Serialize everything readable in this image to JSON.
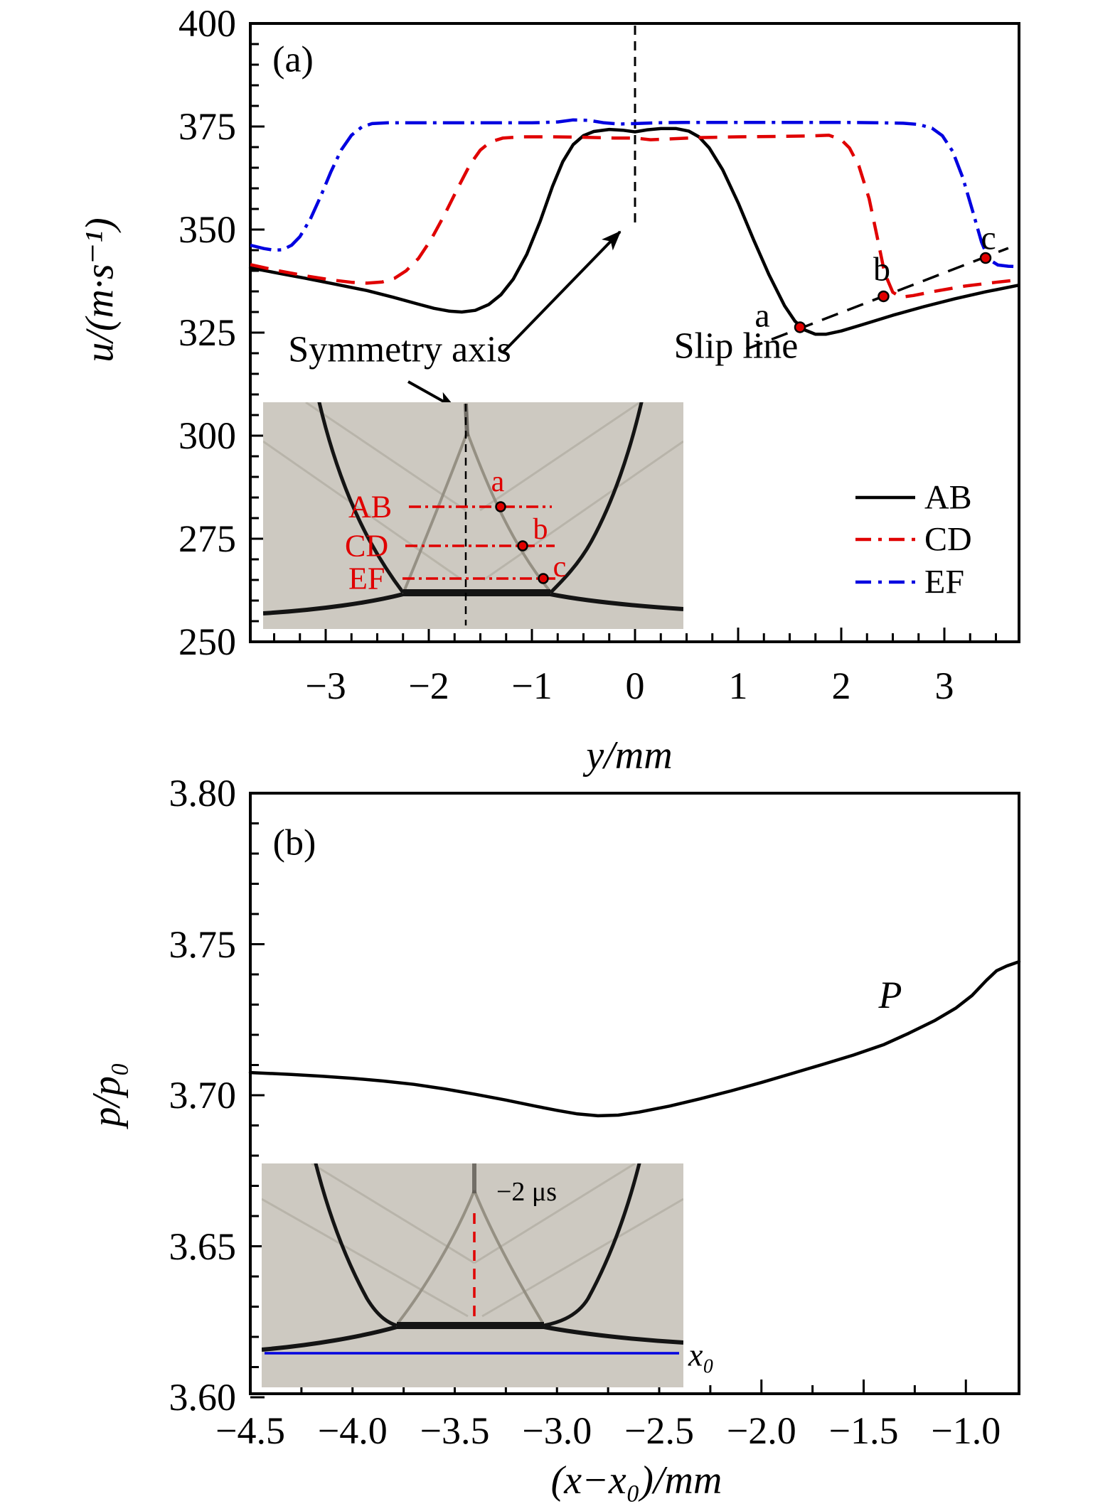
{
  "panel_a": {
    "label": "(a)",
    "ylabel": "u/(m·s⁻¹)",
    "xlabel": "y/mm",
    "yticks": [
      "400",
      "375",
      "350",
      "325",
      "300",
      "275",
      "250"
    ],
    "xticks": [
      "−3",
      "−2",
      "−1",
      "0",
      "1",
      "2",
      "3"
    ],
    "legend": [
      "AB",
      "CD",
      "EF"
    ],
    "annotations": {
      "symmetry": "Symmetry axis",
      "slip": "Slip line",
      "point_a": "a",
      "point_b": "b",
      "point_c": "c"
    },
    "inset": {
      "line_ab": "AB",
      "line_cd": "CD",
      "line_ef": "EF",
      "point_a": "a",
      "point_b": "b",
      "point_c": "c"
    }
  },
  "panel_b": {
    "label": "(b)",
    "ylabel": "p/p₀",
    "xlabel": "(x−x₀)/mm",
    "yticks": [
      "3.80",
      "3.75",
      "3.70",
      "3.65",
      "3.60"
    ],
    "xticks": [
      "−4.5",
      "−4.0",
      "−3.5",
      "−3.0",
      "−2.5",
      "−2.0",
      "−1.5",
      "−1.0"
    ],
    "curve_label": "P",
    "inset": {
      "time_label": "−2 μs",
      "x0_label": "x₀"
    }
  },
  "colors": {
    "black": "#000000",
    "red": "#e00000",
    "blue": "#0000e0",
    "inset_bg": "#cdc9c1"
  },
  "chart_data": [
    {
      "type": "line",
      "title": "",
      "xlabel": "y/mm",
      "ylabel": "u/(m·s⁻¹)",
      "xlim": [
        -3.73,
        3.72
      ],
      "ylim": [
        250,
        400
      ],
      "xticks": [
        -3,
        -2,
        -1,
        0,
        1,
        2,
        3
      ],
      "yticks": [
        400,
        375,
        350,
        325,
        300,
        275,
        250
      ],
      "x_minor_step": 0.25,
      "y_minor_step": 5,
      "grid": false,
      "legend_position": "lower right",
      "symmetry_axis_x": 0,
      "slip_line": [
        [
          1.08,
          321.0
        ],
        [
          3.62,
          345.5
        ]
      ],
      "marked_points": [
        {
          "label": "a",
          "x": 1.6,
          "y": 326.3
        },
        {
          "label": "b",
          "x": 2.41,
          "y": 333.8
        },
        {
          "label": "c",
          "x": 3.4,
          "y": 343.1
        }
      ],
      "series": [
        {
          "name": "AB",
          "color": "#000000",
          "style": "solid",
          "points": [
            [
              -3.73,
              340.7
            ],
            [
              -3.5,
              339.6
            ],
            [
              -3.2,
              338.2
            ],
            [
              -2.9,
              336.7
            ],
            [
              -2.6,
              335.2
            ],
            [
              -2.35,
              333.6
            ],
            [
              -2.1,
              331.9
            ],
            [
              -1.95,
              330.9
            ],
            [
              -1.8,
              330.2
            ],
            [
              -1.68,
              330.0
            ],
            [
              -1.55,
              330.4
            ],
            [
              -1.42,
              331.8
            ],
            [
              -1.3,
              334.2
            ],
            [
              -1.18,
              338.0
            ],
            [
              -1.05,
              344.0
            ],
            [
              -0.92,
              352.0
            ],
            [
              -0.8,
              360.5
            ],
            [
              -0.7,
              366.5
            ],
            [
              -0.6,
              370.6
            ],
            [
              -0.5,
              372.8
            ],
            [
              -0.4,
              373.8
            ],
            [
              -0.25,
              374.3
            ],
            [
              -0.12,
              374.1
            ],
            [
              0,
              373.7
            ],
            [
              0.12,
              374.2
            ],
            [
              0.25,
              374.5
            ],
            [
              0.4,
              374.5
            ],
            [
              0.52,
              373.9
            ],
            [
              0.62,
              372.5
            ],
            [
              0.72,
              369.8
            ],
            [
              0.85,
              364.5
            ],
            [
              1.0,
              356.5
            ],
            [
              1.15,
              347.5
            ],
            [
              1.3,
              339.0
            ],
            [
              1.45,
              331.5
            ],
            [
              1.55,
              327.8
            ],
            [
              1.65,
              325.6
            ],
            [
              1.75,
              324.6
            ],
            [
              1.85,
              324.6
            ],
            [
              2.0,
              325.4
            ],
            [
              2.2,
              326.9
            ],
            [
              2.5,
              329.2
            ],
            [
              2.8,
              331.3
            ],
            [
              3.1,
              333.2
            ],
            [
              3.4,
              334.9
            ],
            [
              3.72,
              336.5
            ]
          ]
        },
        {
          "name": "CD",
          "color": "#e00000",
          "style": "dashed",
          "points": [
            [
              -3.73,
              341.5
            ],
            [
              -3.5,
              340.2
            ],
            [
              -3.2,
              338.8
            ],
            [
              -2.95,
              337.8
            ],
            [
              -2.75,
              337.2
            ],
            [
              -2.6,
              337.0
            ],
            [
              -2.45,
              337.3
            ],
            [
              -2.33,
              338.2
            ],
            [
              -2.22,
              340.0
            ],
            [
              -2.1,
              343.0
            ],
            [
              -1.98,
              347.5
            ],
            [
              -1.85,
              353.5
            ],
            [
              -1.72,
              360.0
            ],
            [
              -1.6,
              365.8
            ],
            [
              -1.5,
              369.3
            ],
            [
              -1.4,
              371.3
            ],
            [
              -1.28,
              372.2
            ],
            [
              -1.1,
              372.5
            ],
            [
              -0.8,
              372.5
            ],
            [
              -0.5,
              372.4
            ],
            [
              -0.2,
              372.2
            ],
            [
              0,
              372.2
            ],
            [
              0.15,
              371.8
            ],
            [
              0.35,
              372.0
            ],
            [
              0.6,
              372.3
            ],
            [
              1.0,
              372.5
            ],
            [
              1.4,
              372.6
            ],
            [
              1.7,
              372.7
            ],
            [
              1.88,
              372.9
            ],
            [
              2.0,
              371.8
            ],
            [
              2.08,
              369.8
            ],
            [
              2.17,
              365.5
            ],
            [
              2.27,
              357.5
            ],
            [
              2.35,
              348.0
            ],
            [
              2.42,
              339.5
            ],
            [
              2.5,
              334.8
            ],
            [
              2.58,
              333.6
            ],
            [
              2.7,
              334.0
            ],
            [
              2.9,
              335.0
            ],
            [
              3.2,
              336.3
            ],
            [
              3.5,
              337.2
            ],
            [
              3.72,
              337.8
            ]
          ]
        },
        {
          "name": "EF",
          "color": "#0000e0",
          "style": "dashdot",
          "points": [
            [
              -3.73,
              346.2
            ],
            [
              -3.6,
              345.4
            ],
            [
              -3.5,
              345.0
            ],
            [
              -3.42,
              345.1
            ],
            [
              -3.33,
              346.2
            ],
            [
              -3.25,
              348.3
            ],
            [
              -3.15,
              352.5
            ],
            [
              -3.05,
              358.0
            ],
            [
              -2.95,
              364.0
            ],
            [
              -2.85,
              369.3
            ],
            [
              -2.75,
              372.9
            ],
            [
              -2.65,
              374.9
            ],
            [
              -2.55,
              375.7
            ],
            [
              -2.4,
              375.9
            ],
            [
              -2.0,
              375.9
            ],
            [
              -1.5,
              375.9
            ],
            [
              -1.0,
              375.9
            ],
            [
              -0.75,
              376.1
            ],
            [
              -0.6,
              376.6
            ],
            [
              -0.45,
              376.5
            ],
            [
              -0.3,
              375.9
            ],
            [
              -0.15,
              375.6
            ],
            [
              0,
              375.7
            ],
            [
              0.2,
              375.9
            ],
            [
              0.5,
              376.0
            ],
            [
              1.0,
              376.0
            ],
            [
              1.5,
              376.0
            ],
            [
              2.0,
              376.0
            ],
            [
              2.4,
              375.9
            ],
            [
              2.6,
              375.8
            ],
            [
              2.75,
              375.5
            ],
            [
              2.88,
              374.6
            ],
            [
              2.98,
              372.8
            ],
            [
              3.08,
              369.0
            ],
            [
              3.18,
              362.5
            ],
            [
              3.28,
              354.0
            ],
            [
              3.36,
              347.0
            ],
            [
              3.43,
              342.8
            ],
            [
              3.52,
              341.4
            ],
            [
              3.62,
              341.1
            ],
            [
              3.72,
              341.0
            ]
          ]
        }
      ]
    },
    {
      "type": "line",
      "title": "",
      "xlabel": "(x−x₀)/mm",
      "ylabel": "p/p₀",
      "xlim": [
        -4.5,
        -0.74
      ],
      "ylim": [
        3.6,
        3.8
      ],
      "xticks": [
        -4.5,
        -4.0,
        -3.5,
        -3.0,
        -2.5,
        -2.0,
        -1.5,
        -1.0
      ],
      "yticks": [
        3.8,
        3.75,
        3.7,
        3.65,
        3.6
      ],
      "x_minor_step": 0.25,
      "y_minor_step": 0.01,
      "grid": false,
      "series": [
        {
          "name": "P",
          "color": "#000000",
          "style": "solid",
          "points": [
            [
              -4.5,
              3.7075
            ],
            [
              -4.3,
              3.7069
            ],
            [
              -4.15,
              3.7063
            ],
            [
              -4.0,
              3.7056
            ],
            [
              -3.85,
              3.7047
            ],
            [
              -3.7,
              3.7036
            ],
            [
              -3.55,
              3.7021
            ],
            [
              -3.4,
              3.7003
            ],
            [
              -3.25,
              3.6984
            ],
            [
              -3.1,
              3.6963
            ],
            [
              -3.0,
              3.695
            ],
            [
              -2.9,
              3.6938
            ],
            [
              -2.8,
              3.6932
            ],
            [
              -2.7,
              3.6934
            ],
            [
              -2.6,
              3.6944
            ],
            [
              -2.45,
              3.6964
            ],
            [
              -2.3,
              3.6988
            ],
            [
              -2.15,
              3.7014
            ],
            [
              -2.0,
              3.7042
            ],
            [
              -1.85,
              3.7072
            ],
            [
              -1.7,
              3.7102
            ],
            [
              -1.55,
              3.7133
            ],
            [
              -1.4,
              3.7168
            ],
            [
              -1.28,
              3.7205
            ],
            [
              -1.15,
              3.7248
            ],
            [
              -1.05,
              3.7288
            ],
            [
              -0.97,
              3.733
            ],
            [
              -0.9,
              3.738
            ],
            [
              -0.85,
              3.7412
            ],
            [
              -0.8,
              3.7428
            ],
            [
              -0.74,
              3.7442
            ]
          ]
        }
      ]
    }
  ]
}
